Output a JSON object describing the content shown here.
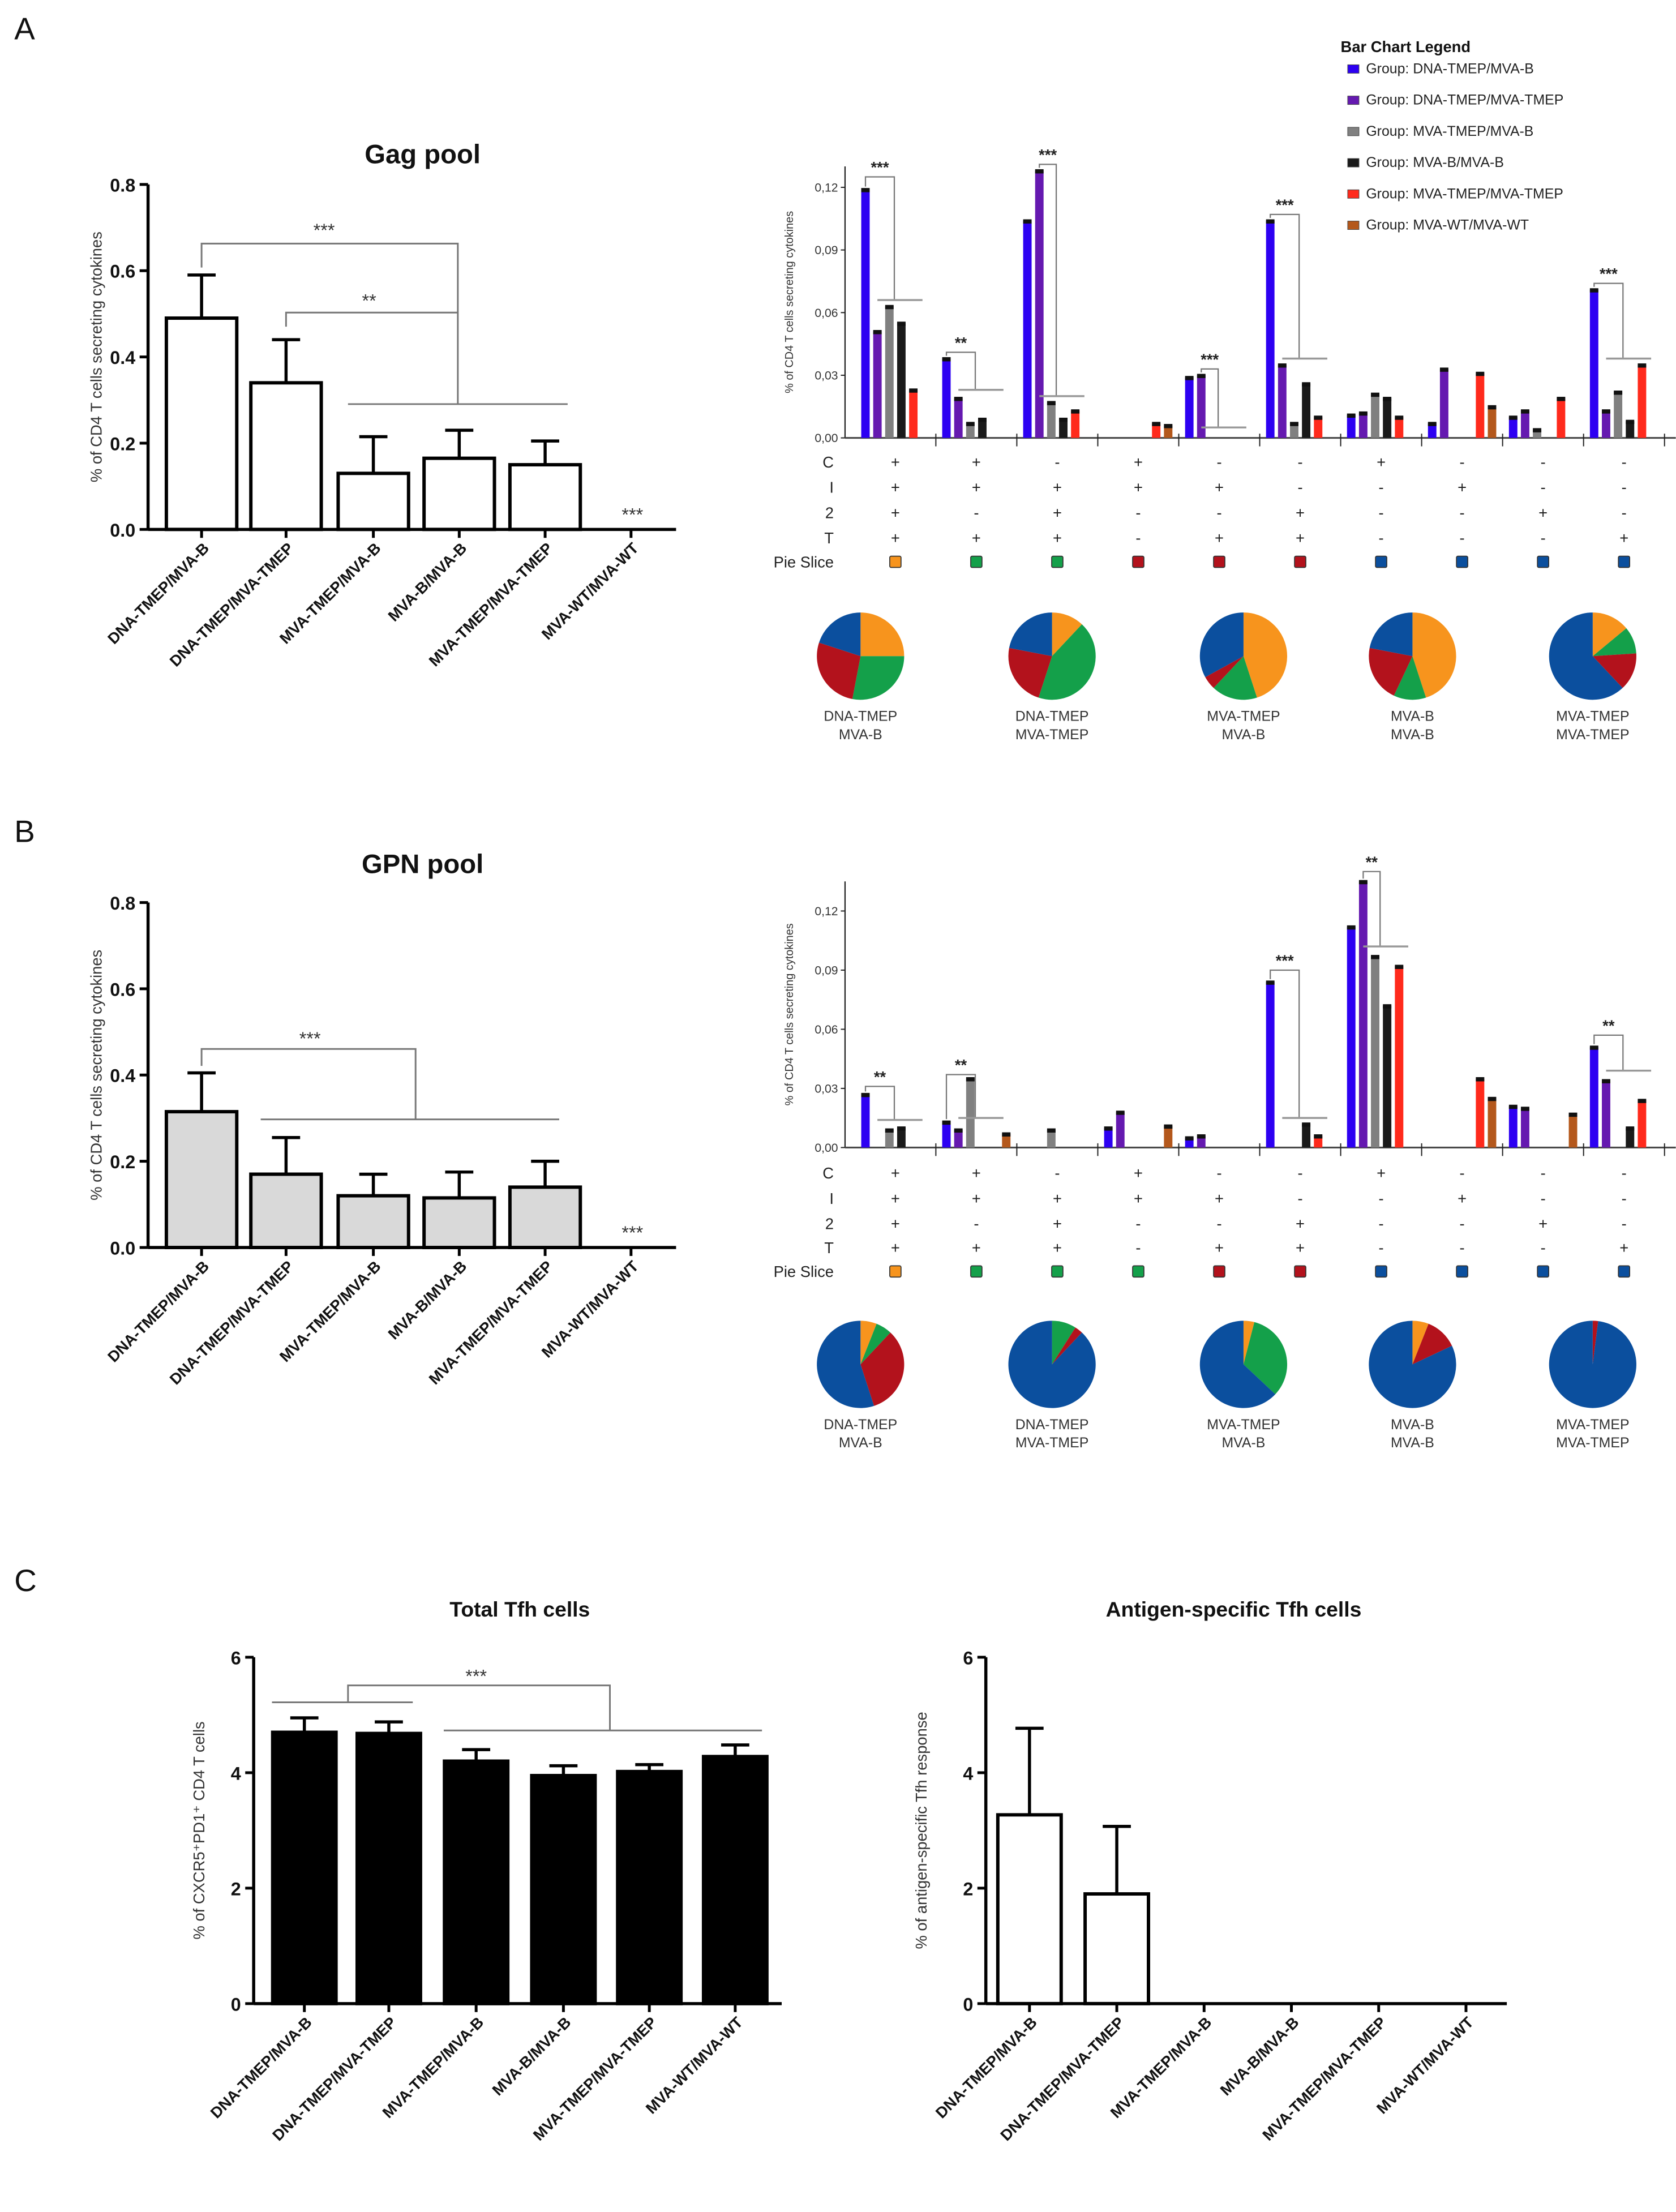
{
  "panels": {
    "a": "A",
    "b": "B",
    "c": "C"
  },
  "legend": {
    "title": "Bar Chart Legend",
    "items": [
      {
        "label": "Group: DNA-TMEP/MVA-B",
        "color": "#2d00f2"
      },
      {
        "label": "Group: DNA-TMEP/MVA-TMEP",
        "color": "#6519b0"
      },
      {
        "label": "Group: MVA-TMEP/MVA-B",
        "color": "#808080"
      },
      {
        "label": "Group: MVA-B/MVA-B",
        "color": "#1a1a1a"
      },
      {
        "label": "Group: MVA-TMEP/MVA-TMEP",
        "color": "#ff2a1c"
      },
      {
        "label": "Group: MVA-WT/MVA-WT",
        "color": "#b4581c"
      }
    ]
  },
  "pie_colors": {
    "orange": "#f7941d",
    "green": "#14a04a",
    "red": "#b3121c",
    "blue": "#0b4f9e"
  },
  "chart_data": [
    {
      "id": "gag_total",
      "type": "bar",
      "title": "Gag pool",
      "xlabel": "",
      "ylabel": "% of CD4 T cells secreting cytokines",
      "categories": [
        "DNA-TMEP/MVA-B",
        "DNA-TMEP/MVA-TMEP",
        "MVA-TMEP/MVA-B",
        "MVA-B/MVA-B",
        "MVA-TMEP/MVA-TMEP",
        "MVA-WT/MVA-WT"
      ],
      "values": [
        0.49,
        0.34,
        0.13,
        0.165,
        0.15,
        0
      ],
      "errors": [
        0.1,
        0.1,
        0.085,
        0.065,
        0.055,
        0
      ],
      "ylim": [
        0,
        0.8
      ],
      "yticks": [
        {
          "value": 0,
          "label": "0.0"
        },
        {
          "value": 0.2,
          "label": "0.2"
        },
        {
          "value": 0.4,
          "label": "0.4"
        },
        {
          "value": 0.6,
          "label": "0.6"
        },
        {
          "value": 0.8,
          "label": "0.8"
        }
      ],
      "fill": "#ffffff",
      "annotations": [
        {
          "label": "***"
        },
        {
          "label": "**"
        },
        {
          "label": "***"
        }
      ]
    },
    {
      "id": "gag_functional",
      "type": "bar",
      "ylabel": "% of CD4 T cells secreting cytokines",
      "ylim": [
        0,
        0.13
      ],
      "yticks": [
        {
          "value": 0,
          "label": "0,00"
        },
        {
          "value": 0.03,
          "label": "0,03"
        },
        {
          "value": 0.06,
          "label": "0,06"
        },
        {
          "value": 0.09,
          "label": "0,09"
        },
        {
          "value": 0.12,
          "label": "0,12"
        }
      ],
      "series": [
        {
          "name": "Group: DNA-TMEP/MVA-B",
          "values": [
            0.119,
            0.038,
            0.104,
            0,
            0.029,
            0.104,
            0.011,
            0.007,
            0.01,
            0.071
          ]
        },
        {
          "name": "Group: DNA-TMEP/MVA-TMEP",
          "values": [
            0.051,
            0.019,
            0.128,
            0,
            0.03,
            0.035,
            0.012,
            0.033,
            0.013,
            0.013
          ]
        },
        {
          "name": "Group: MVA-TMEP/MVA-B",
          "values": [
            0.063,
            0.007,
            0.017,
            0,
            0,
            0.007,
            0.021,
            0,
            0.004,
            0.022
          ]
        },
        {
          "name": "Group: MVA-B/MVA-B",
          "values": [
            0.055,
            0.009,
            0.009,
            0,
            0,
            0.026,
            0.019,
            0,
            0,
            0.008
          ]
        },
        {
          "name": "Group: MVA-TMEP/MVA-TMEP",
          "values": [
            0.023,
            0,
            0.013,
            0.007,
            0,
            0.01,
            0.01,
            0.031,
            0.019,
            0.035
          ]
        },
        {
          "name": "Group: MVA-WT/MVA-WT",
          "values": [
            0,
            0,
            0,
            0.006,
            0,
            0,
            0,
            0.015,
            0,
            0
          ]
        }
      ],
      "rows": [
        {
          "label": "C",
          "values": [
            "+",
            "+",
            "-",
            "+",
            "-",
            "-",
            "+",
            "-",
            "-",
            "-"
          ]
        },
        {
          "label": "I",
          "values": [
            "+",
            "+",
            "+",
            "+",
            "+",
            "-",
            "-",
            "+",
            "-",
            "-"
          ]
        },
        {
          "label": "2",
          "values": [
            "+",
            "-",
            "+",
            "-",
            "-",
            "+",
            "-",
            "-",
            "+",
            "-"
          ]
        },
        {
          "label": "T",
          "values": [
            "+",
            "+",
            "+",
            "-",
            "+",
            "+",
            "-",
            "-",
            "-",
            "+"
          ]
        }
      ],
      "pie_slice_label": "Pie Slice",
      "pie_slice": [
        "orange",
        "green",
        "green",
        "red",
        "red",
        "red",
        "blue",
        "blue",
        "blue",
        "blue"
      ],
      "annotations": [
        {
          "category": 0,
          "from_series": 0,
          "y": 0.125,
          "line": 0.066,
          "label": "***"
        },
        {
          "category": 1,
          "from_series": 0,
          "y": 0.041,
          "line": 0.023,
          "label": "**"
        },
        {
          "category": 2,
          "from_series": 1,
          "y": 0.131,
          "line": 0.02,
          "label": "***"
        },
        {
          "category": 4,
          "from_series": 1,
          "y": 0.033,
          "line": 0.005,
          "label": "***"
        },
        {
          "category": 5,
          "from_series": 0,
          "y": 0.107,
          "line": 0.038,
          "label": "***"
        },
        {
          "category": 9,
          "from_series": 0,
          "y": 0.074,
          "line": 0.038,
          "label": "***"
        }
      ]
    },
    {
      "id": "gag_pies",
      "type": "pie",
      "slice_order": [
        "orange",
        "green",
        "red",
        "blue"
      ],
      "pies": [
        {
          "label": [
            "DNA-TMEP",
            "MVA-B"
          ],
          "values": [
            25,
            28,
            27,
            20
          ]
        },
        {
          "label": [
            "DNA-TMEP",
            "MVA-TMEP"
          ],
          "values": [
            12,
            43,
            23,
            22
          ]
        },
        {
          "label": [
            "MVA-TMEP",
            "MVA-B"
          ],
          "values": [
            45,
            17,
            5,
            33
          ]
        },
        {
          "label": [
            "MVA-B",
            "MVA-B"
          ],
          "values": [
            45,
            12,
            21,
            22
          ]
        },
        {
          "label": [
            "MVA-TMEP",
            "MVA-TMEP"
          ],
          "values": [
            14,
            10,
            14,
            62
          ]
        }
      ]
    },
    {
      "id": "gpn_total",
      "type": "bar",
      "title": "GPN pool",
      "xlabel": "",
      "ylabel": "% of CD4 T cells secreting cytokines",
      "categories": [
        "DNA-TMEP/MVA-B",
        "DNA-TMEP/MVA-TMEP",
        "MVA-TMEP/MVA-B",
        "MVA-B/MVA-B",
        "MVA-TMEP/MVA-TMEP",
        "MVA-WT/MVA-WT"
      ],
      "values": [
        0.315,
        0.17,
        0.12,
        0.115,
        0.14,
        0
      ],
      "errors": [
        0.09,
        0.085,
        0.05,
        0.06,
        0.06,
        0
      ],
      "ylim": [
        0,
        0.8
      ],
      "yticks": [
        {
          "value": 0,
          "label": "0.0"
        },
        {
          "value": 0.2,
          "label": "0.2"
        },
        {
          "value": 0.4,
          "label": "0.4"
        },
        {
          "value": 0.6,
          "label": "0.6"
        },
        {
          "value": 0.8,
          "label": "0.8"
        }
      ],
      "fill": "#d9d9d9",
      "annotations": [
        {
          "label": "***"
        },
        {
          "label": "***"
        }
      ]
    },
    {
      "id": "gpn_functional",
      "type": "bar",
      "ylabel": "% of CD4 T cells secreting cytokines",
      "ylim": [
        0,
        0.135
      ],
      "yticks": [
        {
          "value": 0,
          "label": "0,00"
        },
        {
          "value": 0.03,
          "label": "0,03"
        },
        {
          "value": 0.06,
          "label": "0,06"
        },
        {
          "value": 0.09,
          "label": "0,09"
        },
        {
          "value": 0.12,
          "label": "0,12"
        }
      ],
      "series": [
        {
          "name": "Group: DNA-TMEP/MVA-B",
          "values": [
            0.027,
            0.013,
            0,
            0.01,
            0.005,
            0.084,
            0.112,
            0,
            0.021,
            0.051
          ]
        },
        {
          "name": "Group: DNA-TMEP/MVA-TMEP",
          "values": [
            0,
            0.009,
            0,
            0.018,
            0.006,
            0,
            0.135,
            0,
            0.02,
            0.034
          ]
        },
        {
          "name": "Group: MVA-TMEP/MVA-B",
          "values": [
            0.009,
            0.035,
            0.009,
            0,
            0,
            0,
            0.097,
            0,
            0,
            0
          ]
        },
        {
          "name": "Group: MVA-B/MVA-B",
          "values": [
            0.01,
            0,
            0,
            0,
            0,
            0.012,
            0.072,
            0,
            0,
            0.01
          ]
        },
        {
          "name": "Group: MVA-TMEP/MVA-TMEP",
          "values": [
            0,
            0,
            0,
            0,
            0,
            0.006,
            0.092,
            0.035,
            0,
            0.024
          ]
        },
        {
          "name": "Group: MVA-WT/MVA-WT",
          "values": [
            0,
            0.007,
            0,
            0.011,
            0,
            0,
            0,
            0.025,
            0.017,
            0
          ]
        }
      ],
      "rows": [
        {
          "label": "C",
          "values": [
            "+",
            "+",
            "-",
            "+",
            "-",
            "-",
            "+",
            "-",
            "-",
            "-"
          ]
        },
        {
          "label": "I",
          "values": [
            "+",
            "+",
            "+",
            "+",
            "+",
            "-",
            "-",
            "+",
            "-",
            "-"
          ]
        },
        {
          "label": "2",
          "values": [
            "+",
            "-",
            "+",
            "-",
            "-",
            "+",
            "-",
            "-",
            "+",
            "-"
          ]
        },
        {
          "label": "T",
          "values": [
            "+",
            "+",
            "+",
            "-",
            "+",
            "+",
            "-",
            "-",
            "-",
            "+"
          ]
        }
      ],
      "pie_slice_label": "Pie Slice",
      "pie_slice": [
        "orange",
        "green",
        "green",
        "green",
        "red",
        "red",
        "blue",
        "blue",
        "blue",
        "blue"
      ],
      "annotations": [
        {
          "category": 0,
          "from_series": 0,
          "y": 0.031,
          "line": 0.014,
          "label": "**"
        },
        {
          "category": 1,
          "from_series": 0,
          "y": 0.037,
          "line": 0.015,
          "label": "**"
        },
        {
          "category": 5,
          "from_series": 0,
          "y": 0.09,
          "line": 0.015,
          "label": "***"
        },
        {
          "category": 6,
          "from_series": 1,
          "y": 0.14,
          "line": 0.102,
          "label": "**"
        },
        {
          "category": 9,
          "from_series": 0,
          "y": 0.057,
          "line": 0.039,
          "label": "**"
        }
      ]
    },
    {
      "id": "gpn_pies",
      "type": "pie",
      "slice_order": [
        "orange",
        "green",
        "red",
        "blue"
      ],
      "pies": [
        {
          "label": [
            "DNA-TMEP",
            "MVA-B"
          ],
          "values": [
            6,
            6,
            33,
            55
          ]
        },
        {
          "label": [
            "DNA-TMEP",
            "MVA-TMEP"
          ],
          "values": [
            0,
            9,
            3,
            88
          ]
        },
        {
          "label": [
            "MVA-TMEP",
            "MVA-B"
          ],
          "values": [
            4,
            33,
            0,
            63
          ]
        },
        {
          "label": [
            "MVA-B",
            "MVA-B"
          ],
          "values": [
            6,
            0,
            12,
            82
          ]
        },
        {
          "label": [
            "MVA-TMEP",
            "MVA-TMEP"
          ],
          "values": [
            0,
            0,
            2,
            98
          ]
        }
      ]
    },
    {
      "id": "tfh_total",
      "type": "bar",
      "title": "Total Tfh cells",
      "xlabel": "",
      "ylabel": "% of CXCR5⁺PD1⁺ CD4 T cells",
      "categories": [
        "DNA-TMEP/MVA-B",
        "DNA-TMEP/MVA-TMEP",
        "MVA-TMEP/MVA-B",
        "MVA-B/MVA-B",
        "MVA-TMEP/MVA-TMEP",
        "MVA-WT/MVA-WT"
      ],
      "values": [
        4.7,
        4.68,
        4.2,
        3.95,
        4.02,
        4.28
      ],
      "errors": [
        0.25,
        0.2,
        0.2,
        0.17,
        0.12,
        0.2
      ],
      "ylim": [
        0,
        6
      ],
      "yticks": [
        {
          "value": 0,
          "label": "0"
        },
        {
          "value": 2,
          "label": "2"
        },
        {
          "value": 4,
          "label": "4"
        },
        {
          "value": 6,
          "label": "6"
        }
      ],
      "fill": "#000000",
      "annotations": [
        {
          "label": "***"
        }
      ]
    },
    {
      "id": "tfh_antigen",
      "type": "bar",
      "title": "Antigen-specific Tfh cells",
      "xlabel": "",
      "ylabel": "% of antigen-specific Tfh response",
      "categories": [
        "DNA-TMEP/MVA-B",
        "DNA-TMEP/MVA-TMEP",
        "MVA-TMEP/MVA-B",
        "MVA-B/MVA-B",
        "MVA-TMEP/MVA-TMEP",
        "MVA-WT/MVA-WT"
      ],
      "values": [
        3.27,
        1.9,
        0,
        0,
        0,
        0
      ],
      "errors": [
        1.5,
        1.17,
        0,
        0,
        0,
        0
      ],
      "ylim": [
        0,
        6
      ],
      "yticks": [
        {
          "value": 0,
          "label": "0"
        },
        {
          "value": 2,
          "label": "2"
        },
        {
          "value": 4,
          "label": "4"
        },
        {
          "value": 6,
          "label": "6"
        }
      ],
      "fill": "#ffffff",
      "annotations": []
    }
  ]
}
